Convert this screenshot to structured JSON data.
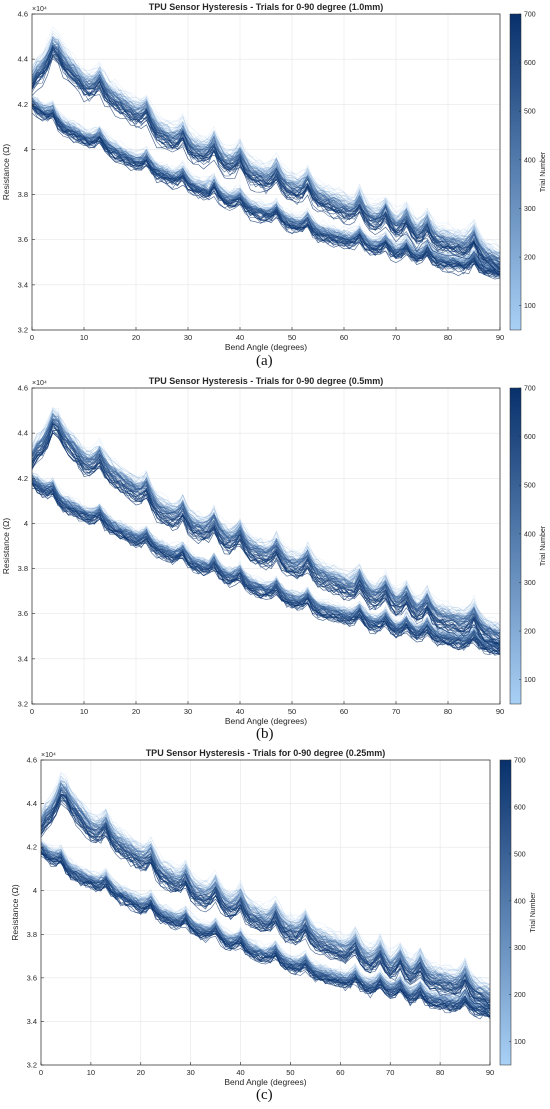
{
  "chart_data": [
    {
      "type": "line",
      "panel_label": "(a)",
      "title": "TPU Sensor Hysteresis - Trials for 0-90 degree (1.0mm)",
      "xlabel": "Bend Angle (degrees)",
      "ylabel": "Resistance (Ω)",
      "y_exponent_label": "×10⁴",
      "xlim": [
        0,
        90
      ],
      "ylim": [
        32000,
        46000
      ],
      "xticks": [
        0,
        10,
        20,
        30,
        40,
        50,
        60,
        70,
        80,
        90
      ],
      "yticks": [
        3.2,
        3.4,
        3.6,
        3.8,
        4,
        4.2,
        4.4,
        4.6
      ],
      "grid": true,
      "colorbar": {
        "label": "Trial Number",
        "range": [
          50,
          700
        ],
        "ticks": [
          100,
          200,
          300,
          400,
          500,
          600,
          700
        ],
        "color_low": "#a9d0f5",
        "color_high": "#08306b"
      },
      "series_summary": {
        "x": [
          0,
          5,
          10,
          15,
          20,
          25,
          30,
          35,
          40,
          45,
          50,
          55,
          60,
          65,
          70,
          75,
          80,
          85,
          90
        ],
        "loading_y": [
          42800,
          43800,
          42500,
          42000,
          41200,
          40300,
          39700,
          39300,
          38800,
          38300,
          37900,
          37500,
          37000,
          36600,
          36200,
          35800,
          35500,
          35200,
          34600
        ],
        "unloading_y": [
          41800,
          40900,
          40300,
          39800,
          39200,
          38700,
          38200,
          37800,
          37300,
          36900,
          36500,
          36100,
          35800,
          35500,
          35200,
          35000,
          34800,
          34600,
          34400
        ]
      }
    },
    {
      "type": "line",
      "panel_label": "(b)",
      "title": "TPU Sensor Hysteresis - Trials for 0-90 degree (0.5mm)",
      "xlabel": "Bend Angle (degrees)",
      "ylabel": "Resistance (Ω)",
      "y_exponent_label": "×10⁴",
      "xlim": [
        0,
        90
      ],
      "ylim": [
        32000,
        46000
      ],
      "xticks": [
        0,
        10,
        20,
        30,
        40,
        50,
        60,
        70,
        80,
        90
      ],
      "yticks": [
        3.2,
        3.4,
        3.6,
        3.8,
        4,
        4.2,
        4.4,
        4.6
      ],
      "grid": true,
      "colorbar": {
        "label": "Trial Number",
        "range": [
          50,
          700
        ],
        "ticks": [
          100,
          200,
          300,
          400,
          500,
          600,
          700
        ],
        "color_low": "#a9d0f5",
        "color_high": "#08306b"
      },
      "series_summary": {
        "x": [
          0,
          5,
          10,
          15,
          20,
          25,
          30,
          35,
          40,
          45,
          50,
          55,
          60,
          65,
          70,
          75,
          80,
          85,
          90
        ],
        "loading_y": [
          42700,
          43800,
          42400,
          41900,
          41100,
          40200,
          39600,
          39200,
          38700,
          38200,
          37800,
          37400,
          36900,
          36500,
          36100,
          35700,
          35400,
          35100,
          34600
        ],
        "unloading_y": [
          41700,
          40800,
          40200,
          39700,
          39100,
          38600,
          38100,
          37700,
          37200,
          36800,
          36400,
          36000,
          35700,
          35400,
          35100,
          34900,
          34700,
          34500,
          34300
        ]
      }
    },
    {
      "type": "line",
      "panel_label": "(c)",
      "title": "TPU Sensor Hysteresis - Trials for 0-90 degree (0.25mm)",
      "xlabel": "Bend Angle (degrees)",
      "ylabel": "Resistance (Ω)",
      "y_exponent_label": "×10⁴",
      "xlim": [
        0,
        90
      ],
      "ylim": [
        32000,
        46000
      ],
      "xticks": [
        0,
        10,
        20,
        30,
        40,
        50,
        60,
        70,
        80,
        90
      ],
      "yticks": [
        3.2,
        3.4,
        3.6,
        3.8,
        4,
        4.2,
        4.4,
        4.6
      ],
      "grid": true,
      "colorbar": {
        "label": "Trial Number",
        "range": [
          50,
          700
        ],
        "ticks": [
          100,
          200,
          300,
          400,
          500,
          600,
          700
        ],
        "color_low": "#a9d0f5",
        "color_high": "#08306b"
      },
      "series_summary": {
        "x": [
          0,
          5,
          10,
          15,
          20,
          25,
          30,
          35,
          40,
          45,
          50,
          55,
          60,
          65,
          70,
          75,
          80,
          85,
          90
        ],
        "loading_y": [
          42800,
          43900,
          42500,
          41900,
          41100,
          40300,
          39600,
          39200,
          38700,
          38200,
          37800,
          37400,
          36900,
          36500,
          36100,
          35800,
          35500,
          35200,
          34700
        ],
        "unloading_y": [
          41700,
          40800,
          40200,
          39700,
          39100,
          38600,
          38100,
          37700,
          37200,
          36800,
          36400,
          36000,
          35700,
          35400,
          35200,
          34900,
          34700,
          34500,
          34300
        ]
      }
    }
  ]
}
